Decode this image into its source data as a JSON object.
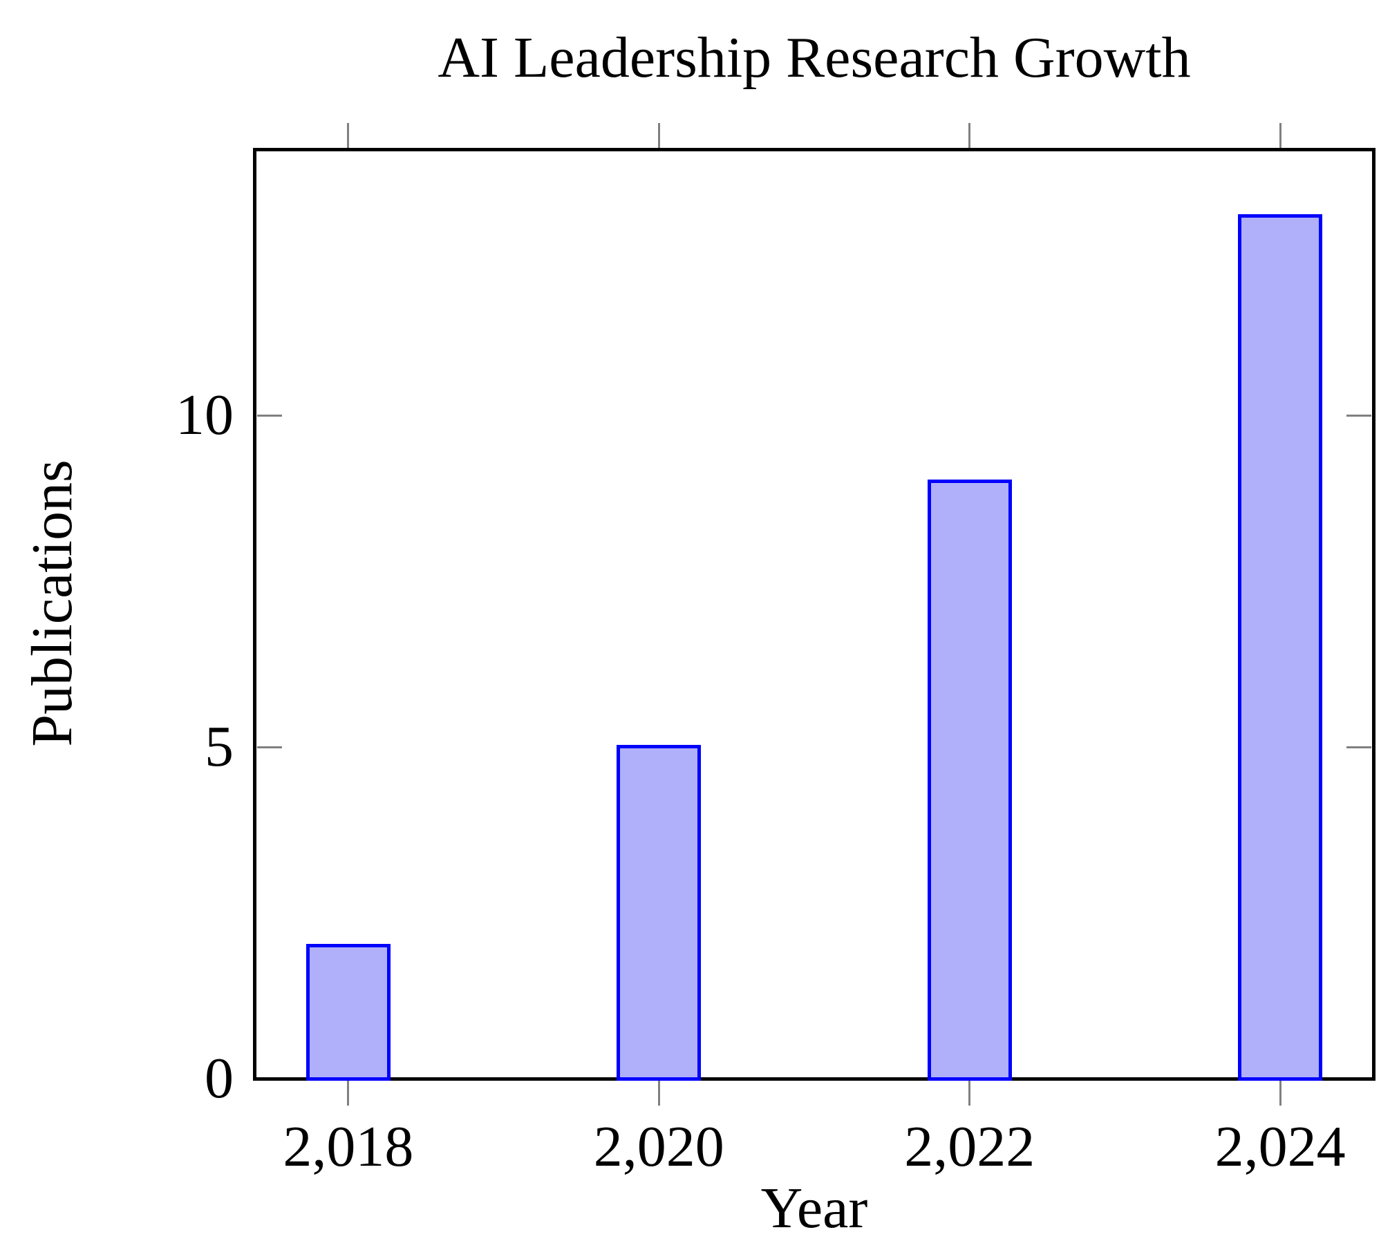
{
  "chart_data": {
    "type": "bar",
    "title": "AI Leadership Research Growth",
    "xlabel": "Year",
    "ylabel": "Publications",
    "categories": [
      2018,
      2020,
      2022,
      2024
    ],
    "values": [
      2,
      5,
      9,
      13
    ],
    "x_tick_labels": [
      "2,018",
      "2,020",
      "2,022",
      "2,024"
    ],
    "y_ticks": [
      0,
      5,
      10
    ],
    "y_tick_labels": [
      "0",
      "5",
      "10"
    ],
    "xlim": [
      2017.4,
      2024.6
    ],
    "ylim": [
      0,
      14
    ],
    "grid": false,
    "legend": null,
    "bar_fill_color": "#b0b0fa",
    "bar_border_color": "#0000ff",
    "axis_color": "#000000",
    "tick_color": "#808080",
    "text_color": "#000000",
    "background_color": "#ffffff"
  }
}
